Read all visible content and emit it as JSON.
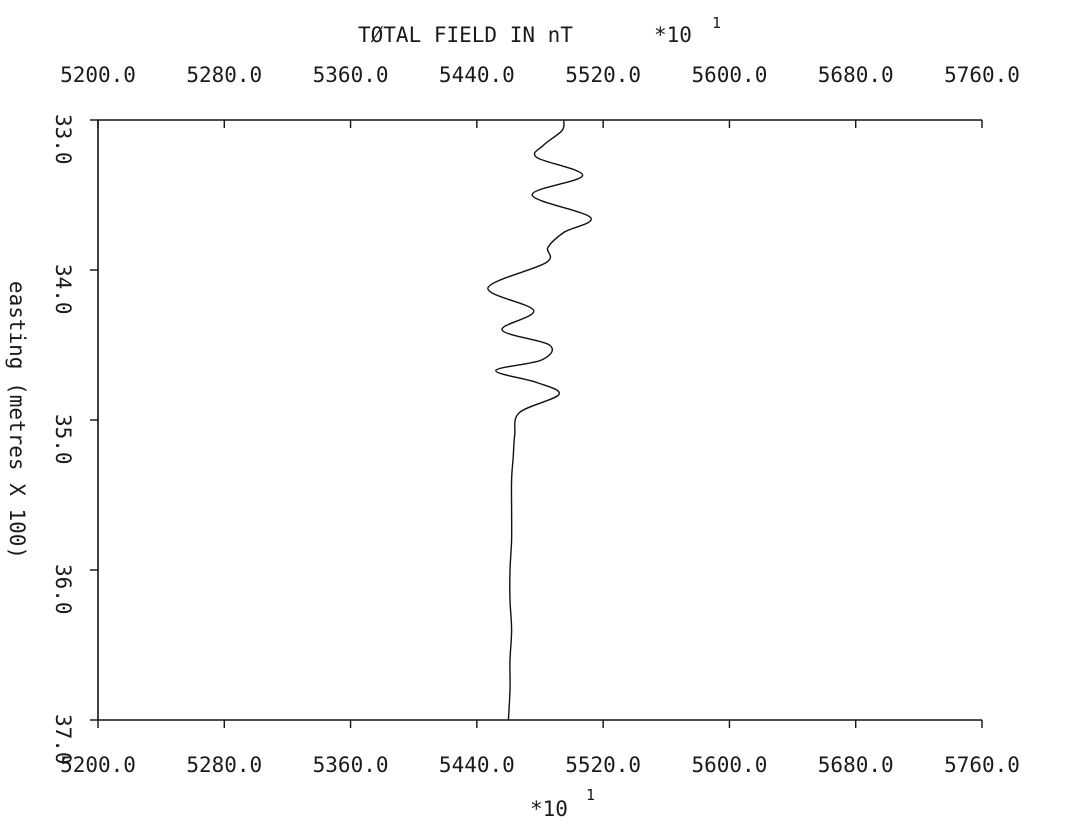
{
  "chart_data": {
    "type": "line",
    "title": "TØTAL FIELD IN nT",
    "title_multiplier": "*10",
    "title_multiplier_exp": "1",
    "xlabel_multiplier": "*10",
    "xlabel_multiplier_exp": "1",
    "ylabel": "easting (metres X 100)",
    "xlim": [
      5200.0,
      5760.0
    ],
    "ylim": [
      33.0,
      37.0
    ],
    "y_inverted": true,
    "x_tick_labels": [
      "5200.0",
      "5280.0",
      "5360.0",
      "5440.0",
      "5520.0",
      "5600.0",
      "5680.0",
      "5760.0"
    ],
    "x_ticks": [
      5200,
      5280,
      5360,
      5440,
      5520,
      5600,
      5680,
      5760
    ],
    "y_tick_labels": [
      "33.0",
      "34.0",
      "35.0",
      "36.0",
      "37.0"
    ],
    "y_ticks": [
      33.0,
      34.0,
      35.0,
      36.0,
      37.0
    ],
    "x_axis_top_and_bottom": true,
    "grid": false,
    "series": [
      {
        "points": [
          [
            5495,
            33.0
          ],
          [
            5494,
            33.07
          ],
          [
            5482,
            33.17
          ],
          [
            5478,
            33.25
          ],
          [
            5507,
            33.37
          ],
          [
            5475,
            33.5
          ],
          [
            5512,
            33.65
          ],
          [
            5495,
            33.75
          ],
          [
            5485,
            33.85
          ],
          [
            5484,
            33.95
          ],
          [
            5447,
            34.12
          ],
          [
            5476,
            34.27
          ],
          [
            5456,
            34.4
          ],
          [
            5486,
            34.5
          ],
          [
            5481,
            34.6
          ],
          [
            5452,
            34.67
          ],
          [
            5478,
            34.75
          ],
          [
            5492,
            34.83
          ],
          [
            5467,
            34.95
          ],
          [
            5464,
            35.1
          ],
          [
            5463,
            35.25
          ],
          [
            5462,
            35.4
          ],
          [
            5462,
            35.6
          ],
          [
            5462,
            35.8
          ],
          [
            5461,
            36.0
          ],
          [
            5461,
            36.2
          ],
          [
            5462,
            36.4
          ],
          [
            5461,
            36.6
          ],
          [
            5461,
            36.8
          ],
          [
            5460,
            37.0
          ]
        ]
      }
    ]
  }
}
